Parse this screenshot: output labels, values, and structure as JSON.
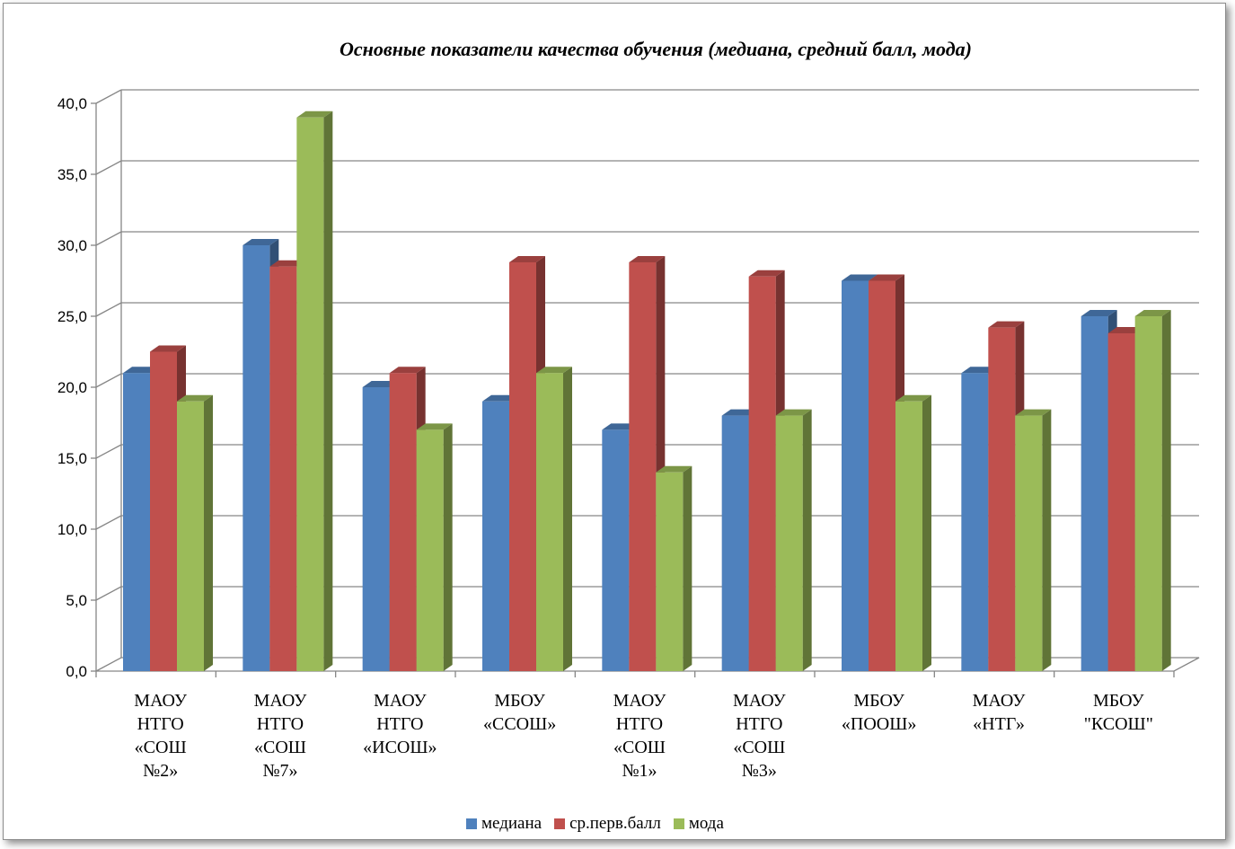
{
  "chart_data": {
    "type": "bar",
    "title": "Основные показатели качества обучения (медиана, средний балл, мода)",
    "categories": [
      [
        "МАОУ",
        "НТГО",
        "«СОШ",
        "№2»"
      ],
      [
        "МАОУ",
        "НТГО",
        "«СОШ",
        "№7»"
      ],
      [
        "МАОУ",
        "НТГО",
        "«ИСОШ»"
      ],
      [
        "МБОУ",
        "«ССОШ»"
      ],
      [
        "МАОУ",
        "НТГО",
        "«СОШ",
        "№1»"
      ],
      [
        "МАОУ",
        "НТГО",
        "«СОШ",
        "№3»"
      ],
      [
        "МБОУ",
        "«ПООШ»"
      ],
      [
        "МАОУ",
        "«НТГ»"
      ],
      [
        "МБОУ",
        "\"КСОШ\""
      ]
    ],
    "series": [
      {
        "name": "медиана",
        "color": "#4f81bd",
        "values": [
          21,
          30,
          20,
          19,
          17,
          18,
          27.5,
          21,
          25
        ]
      },
      {
        "name": "ср.перв.балл",
        "color": "#c0504d",
        "values": [
          22.5,
          28.5,
          21,
          28.8,
          28.8,
          27.8,
          27.5,
          24.2,
          23.8
        ]
      },
      {
        "name": "мода",
        "color": "#9bbb59",
        "values": [
          19,
          39,
          17,
          21,
          14,
          18,
          19,
          18,
          25
        ]
      }
    ],
    "y_ticks": [
      "0,0",
      "5,0",
      "10,0",
      "15,0",
      "20,0",
      "25,0",
      "30,0",
      "35,0",
      "40,0"
    ],
    "ylim": [
      0,
      40
    ],
    "grid": true,
    "legend_position": "bottom"
  }
}
